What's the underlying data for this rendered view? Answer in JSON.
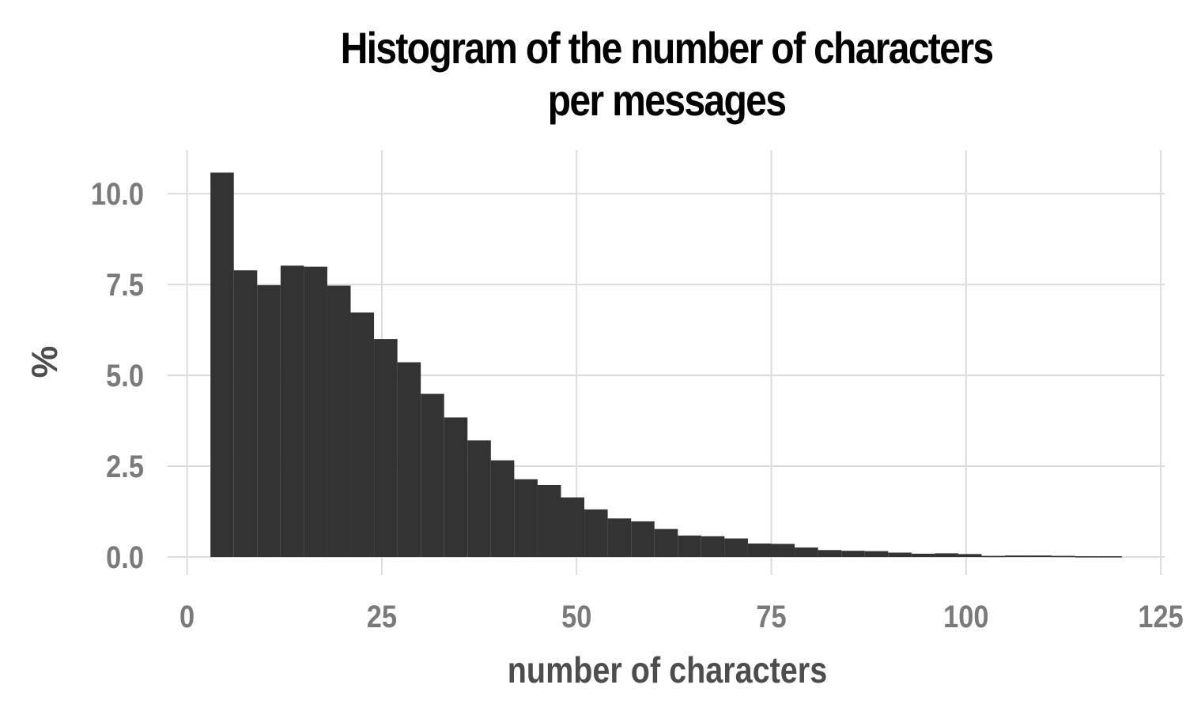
{
  "chart_data": {
    "type": "bar",
    "title_lines": [
      "Histogram of the number of characters",
      "per messages"
    ],
    "xlabel": "number of characters",
    "ylabel": "%",
    "xlim": [
      -2.5,
      125.5
    ],
    "ylim": [
      -0.5,
      11.2
    ],
    "x_ticks": [
      0,
      25,
      50,
      75,
      100,
      125
    ],
    "x_tick_labels": [
      "0",
      "25",
      "50",
      "75",
      "100",
      "125"
    ],
    "y_ticks": [
      0,
      2.5,
      5,
      7.5,
      10
    ],
    "y_tick_labels": [
      "0.0",
      "2.5",
      "5.0",
      "7.5",
      "10.0"
    ],
    "grid": true,
    "bar_color": "#333333",
    "grid_color": "#dcdcdc",
    "bin_width": 3,
    "bins": [
      {
        "x0": 3,
        "value": 10.58
      },
      {
        "x0": 6,
        "value": 7.89
      },
      {
        "x0": 9,
        "value": 7.48
      },
      {
        "x0": 12,
        "value": 8.02
      },
      {
        "x0": 15,
        "value": 7.99
      },
      {
        "x0": 18,
        "value": 7.47
      },
      {
        "x0": 21,
        "value": 6.73
      },
      {
        "x0": 24,
        "value": 6.0
      },
      {
        "x0": 27,
        "value": 5.36
      },
      {
        "x0": 30,
        "value": 4.49
      },
      {
        "x0": 33,
        "value": 3.84
      },
      {
        "x0": 36,
        "value": 3.21
      },
      {
        "x0": 39,
        "value": 2.66
      },
      {
        "x0": 42,
        "value": 2.14
      },
      {
        "x0": 45,
        "value": 1.98
      },
      {
        "x0": 48,
        "value": 1.64
      },
      {
        "x0": 51,
        "value": 1.31
      },
      {
        "x0": 54,
        "value": 1.06
      },
      {
        "x0": 57,
        "value": 0.98
      },
      {
        "x0": 60,
        "value": 0.77
      },
      {
        "x0": 63,
        "value": 0.59
      },
      {
        "x0": 66,
        "value": 0.57
      },
      {
        "x0": 69,
        "value": 0.51
      },
      {
        "x0": 72,
        "value": 0.37
      },
      {
        "x0": 75,
        "value": 0.36
      },
      {
        "x0": 78,
        "value": 0.26
      },
      {
        "x0": 81,
        "value": 0.19
      },
      {
        "x0": 84,
        "value": 0.17
      },
      {
        "x0": 87,
        "value": 0.16
      },
      {
        "x0": 90,
        "value": 0.12
      },
      {
        "x0": 93,
        "value": 0.09
      },
      {
        "x0": 96,
        "value": 0.1
      },
      {
        "x0": 99,
        "value": 0.08
      },
      {
        "x0": 102,
        "value": 0.03
      },
      {
        "x0": 105,
        "value": 0.04
      },
      {
        "x0": 108,
        "value": 0.04
      },
      {
        "x0": 111,
        "value": 0.03
      },
      {
        "x0": 114,
        "value": 0.02
      },
      {
        "x0": 117,
        "value": 0.02
      }
    ]
  }
}
